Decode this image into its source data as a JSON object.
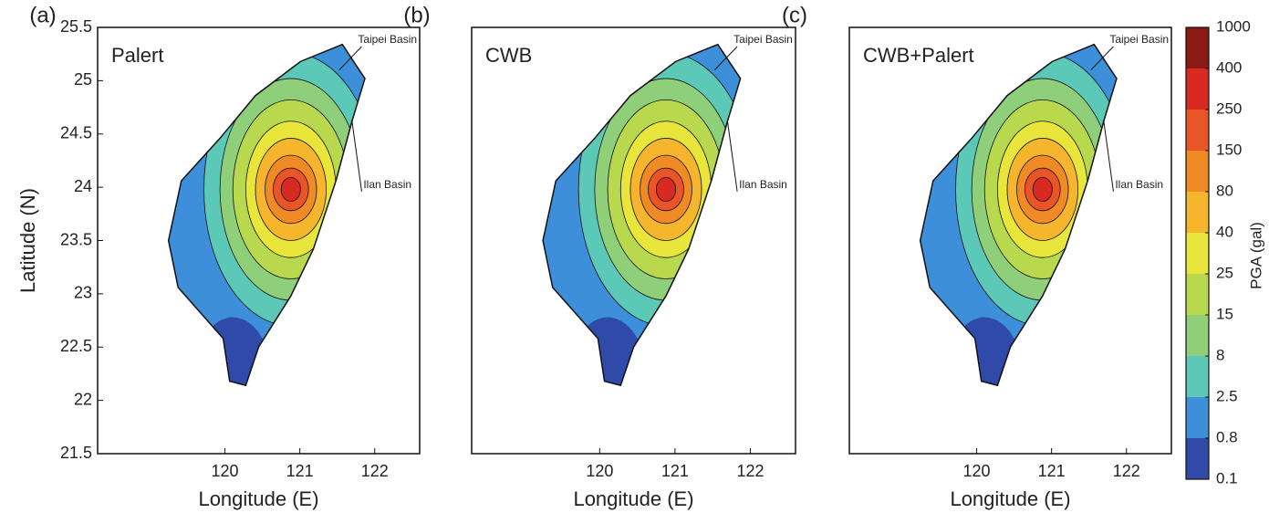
{
  "chart_data": [
    {
      "type": "map",
      "label": "(a)",
      "title": "Palert",
      "xlabel": "Longitude (E)",
      "ylabel": "Latitude (N)",
      "xlim": [
        118.3,
        122.6
      ],
      "ylim": [
        21.5,
        25.5
      ],
      "xticks": [
        120,
        121,
        122
      ],
      "yticks": [
        21.5,
        22,
        22.5,
        23,
        23.5,
        24,
        24.5,
        25,
        25.5
      ],
      "annotations": [
        "Taipei Basin",
        "Ilan Basin"
      ]
    },
    {
      "type": "map",
      "label": "(b)",
      "title": "CWB",
      "xlabel": "Longitude (E)",
      "xlim": [
        118.3,
        122.6
      ],
      "ylim": [
        21.5,
        25.5
      ],
      "xticks": [
        120,
        121,
        122
      ],
      "annotations": [
        "Taipei Basin",
        "Ilan Basin"
      ]
    },
    {
      "type": "map",
      "label": "(c)",
      "title": "CWB+Palert",
      "xlabel": "Longitude (E)",
      "xlim": [
        118.3,
        122.6
      ],
      "ylim": [
        21.5,
        25.5
      ],
      "xticks": [
        120,
        121,
        122
      ],
      "annotations": [
        "Taipei Basin",
        "Ilan Basin"
      ]
    }
  ],
  "colorbar": {
    "label": "PGA (gal)",
    "ticks": [
      0.1,
      0.8,
      2.5,
      8,
      15,
      25,
      40,
      80,
      150,
      250,
      400,
      1000
    ],
    "colors": [
      "#2f4aa8",
      "#3c8fd8",
      "#5cc8b8",
      "#8fcf7a",
      "#b8d84e",
      "#e8e63a",
      "#f5b62d",
      "#f08a25",
      "#ea5528",
      "#d82a22",
      "#8b1a12"
    ]
  }
}
